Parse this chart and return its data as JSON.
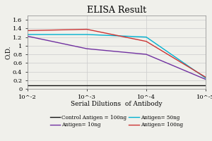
{
  "title": "ELISA Result",
  "ylabel": "O.D.",
  "xlabel": "Serial Dilutions  of Antibody",
  "x_values": [
    -2,
    -3,
    -4,
    -5
  ],
  "x_tick_labels": [
    "10^-2",
    "10^-3",
    "10^-4",
    "10^-5"
  ],
  "ylim": [
    0,
    1.7
  ],
  "yticks": [
    0,
    0.2,
    0.4,
    0.6,
    0.8,
    1.0,
    1.2,
    1.4,
    1.6
  ],
  "ytick_labels": [
    "0",
    "0.2",
    "0.4",
    "0.6",
    "0.8",
    "1",
    "1.2",
    "1.4",
    "1.6"
  ],
  "series": [
    {
      "label": "Control Antigen = 100ng",
      "color": "#111111",
      "y": [
        0.08,
        0.08,
        0.08,
        0.08
      ]
    },
    {
      "label": "Antigen= 10ng",
      "color": "#7030A0",
      "y": [
        1.22,
        0.93,
        0.8,
        0.22
      ]
    },
    {
      "label": "Antigen= 50ng",
      "color": "#00B0D0",
      "y": [
        1.26,
        1.26,
        1.2,
        0.25
      ]
    },
    {
      "label": "Antigen= 100ng",
      "color": "#CC3333",
      "y": [
        1.35,
        1.38,
        1.1,
        0.27
      ]
    }
  ],
  "background_color": "#f0f0eb",
  "grid_color": "#cccccc",
  "title_fontsize": 9,
  "axis_label_fontsize": 6.5,
  "tick_fontsize": 6,
  "legend_fontsize": 5.2
}
